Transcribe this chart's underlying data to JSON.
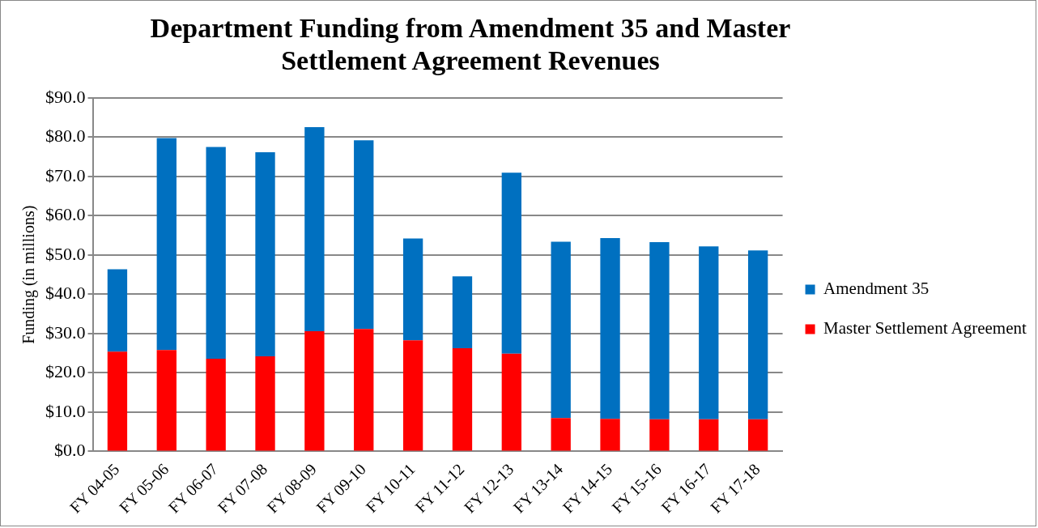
{
  "chart_data": {
    "type": "bar",
    "title": "Department Funding from Amendment 35 and Master Settlement Agreement Revenues",
    "ylabel": "Funding (in millions)",
    "categories": [
      "FY 04-05",
      "FY 05-06",
      "FY 06-07",
      "FY 07-08",
      "FY 08-09",
      "FY 09-10",
      "FY 10-11",
      "FY 11-12",
      "FY 12-13",
      "FY 13-14",
      "FY 14-15",
      "FY 15-16",
      "FY 16-17",
      "FY 17-18"
    ],
    "stacked": true,
    "series": [
      {
        "name": "Master Settlement Agreement",
        "color": "#ff0000",
        "values": [
          25.4,
          25.8,
          23.6,
          24.2,
          30.6,
          31.2,
          28.3,
          26.3,
          24.9,
          8.5,
          8.3,
          8.2,
          8.2,
          8.2
        ]
      },
      {
        "name": "Amendment 35",
        "color": "#0070c0",
        "values": [
          21.0,
          54.0,
          53.9,
          52.0,
          52.0,
          48.0,
          25.9,
          18.3,
          46.1,
          44.9,
          46.0,
          45.1,
          44.0,
          43.0
        ]
      }
    ],
    "ylim": [
      0,
      90
    ],
    "yticks": [
      {
        "value": 0,
        "label": "$0.0"
      },
      {
        "value": 10,
        "label": "$10.0"
      },
      {
        "value": 20,
        "label": "$20.0"
      },
      {
        "value": 30,
        "label": "$30.0"
      },
      {
        "value": 40,
        "label": "$40.0"
      },
      {
        "value": 50,
        "label": "$50.0"
      },
      {
        "value": 60,
        "label": "$60.0"
      },
      {
        "value": 70,
        "label": "$70.0"
      },
      {
        "value": 80,
        "label": "$80.0"
      },
      {
        "value": 90,
        "label": "$90.0"
      }
    ],
    "grid": "y",
    "legend": "right"
  }
}
